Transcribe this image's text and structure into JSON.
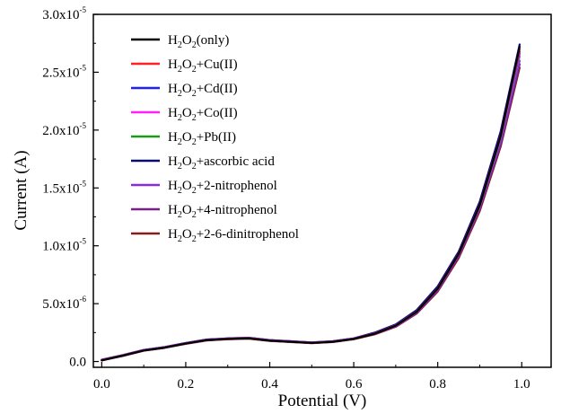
{
  "chart_data": {
    "type": "line",
    "xlabel": "Potential (V)",
    "ylabel": "Current (A)",
    "xlim": [
      -0.02,
      1.07
    ],
    "ylim": [
      -5e-07,
      3e-05
    ],
    "x_ticks": [
      0.0,
      0.2,
      0.4,
      0.6,
      0.8,
      1.0
    ],
    "x_tick_labels": [
      "0.0",
      "0.2",
      "0.4",
      "0.6",
      "0.8",
      "1.0"
    ],
    "y_ticks": [
      0,
      5e-06,
      1e-05,
      1.5e-05,
      2e-05,
      2.5e-05,
      3e-05
    ],
    "y_tick_labels": [
      {
        "mant": "0.0",
        "exp": ""
      },
      {
        "mant": "5.0x10",
        "exp": "-6"
      },
      {
        "mant": "1.0x10",
        "exp": "-5"
      },
      {
        "mant": "1.5x10",
        "exp": "-5"
      },
      {
        "mant": "2.0x10",
        "exp": "-5"
      },
      {
        "mant": "2.5x10",
        "exp": "-5"
      },
      {
        "mant": "3.0x10",
        "exp": "-5"
      }
    ],
    "legend_position": "top-left",
    "series_x": [
      0.0,
      0.05,
      0.1,
      0.15,
      0.2,
      0.25,
      0.3,
      0.35,
      0.4,
      0.45,
      0.5,
      0.55,
      0.6,
      0.65,
      0.7,
      0.75,
      0.8,
      0.85,
      0.9,
      0.95,
      1.0
    ],
    "series": [
      {
        "name_parts": [
          "H",
          "2",
          "O",
          "2",
          "(only)"
        ],
        "color": "#000000",
        "end_y": 2.72e-05,
        "y": [
          1e-07,
          5e-07,
          9.5e-07,
          1.2e-06,
          1.55e-06,
          1.85e-06,
          1.95e-06,
          2e-06,
          1.8e-06,
          1.7e-06,
          1.6e-06,
          1.7e-06,
          1.95e-06,
          2.4e-06,
          3.1e-06,
          4.3e-06,
          6.3e-06,
          9.3e-06,
          1.35e-05,
          1.95e-05,
          2.72e-05
        ]
      },
      {
        "name_parts": [
          "H",
          "2",
          "O",
          "2",
          "+Cu(II)"
        ],
        "color": "#ff2020",
        "end_y": 2.7e-05,
        "y": [
          1.2e-07,
          5.2e-07,
          9.7e-07,
          1.22e-06,
          1.57e-06,
          1.87e-06,
          1.97e-06,
          2.02e-06,
          1.82e-06,
          1.72e-06,
          1.62e-06,
          1.72e-06,
          1.97e-06,
          2.42e-06,
          3.12e-06,
          4.32e-06,
          6.32e-06,
          9.32e-06,
          1.352e-05,
          1.952e-05,
          2.7e-05
        ]
      },
      {
        "name_parts": [
          "H",
          "2",
          "O",
          "2",
          "+Cd(II)"
        ],
        "color": "#2020ff",
        "end_y": 2.68e-05,
        "y": [
          1.5e-07,
          5.5e-07,
          1e-06,
          1.25e-06,
          1.6e-06,
          1.9e-06,
          2e-06,
          2.05e-06,
          1.85e-06,
          1.75e-06,
          1.65e-06,
          1.75e-06,
          2e-06,
          2.45e-06,
          3.15e-06,
          4.35e-06,
          6.35e-06,
          9.35e-06,
          1.355e-05,
          1.955e-05,
          2.68e-05
        ]
      },
      {
        "name_parts": [
          "H",
          "2",
          "O",
          "2",
          "+Co(II)"
        ],
        "color": "#ff20ff",
        "end_y": 2.66e-05,
        "y": [
          1e-07,
          5e-07,
          9.5e-07,
          1.2e-06,
          1.55e-06,
          1.85e-06,
          1.95e-06,
          2e-06,
          1.8e-06,
          1.7e-06,
          1.6e-06,
          1.7e-06,
          1.95e-06,
          2.4e-06,
          3.1e-06,
          4.3e-06,
          6.3e-06,
          9.3e-06,
          1.35e-05,
          1.94e-05,
          2.66e-05
        ]
      },
      {
        "name_parts": [
          "H",
          "2",
          "O",
          "2",
          "+Pb(II)"
        ],
        "color": "#1a9a1a",
        "end_y": 2.64e-05,
        "y": [
          1e-07,
          5e-07,
          9.5e-07,
          1.2e-06,
          1.55e-06,
          1.85e-06,
          1.95e-06,
          2e-06,
          1.8e-06,
          1.7e-06,
          1.6e-06,
          1.7e-06,
          1.95e-06,
          2.4e-06,
          3.1e-06,
          4.3e-06,
          6.3e-06,
          9.3e-06,
          1.345e-05,
          1.93e-05,
          2.64e-05
        ]
      },
      {
        "name_parts": [
          "H",
          "2",
          "O",
          "2",
          "+ascorbic acid"
        ],
        "color": "#0a0a6e",
        "end_y": 2.74e-05,
        "y": [
          1.5e-07,
          5.5e-07,
          1e-06,
          1.25e-06,
          1.6e-06,
          1.9e-06,
          2e-06,
          2.05e-06,
          1.85e-06,
          1.75e-06,
          1.65e-06,
          1.75e-06,
          2e-06,
          2.5e-06,
          3.2e-06,
          4.45e-06,
          6.5e-06,
          9.5e-06,
          1.38e-05,
          1.99e-05,
          2.74e-05
        ]
      },
      {
        "name_parts": [
          "H",
          "2",
          "O",
          "2",
          "+2-nitrophenol"
        ],
        "color": "#8a2be2",
        "end_y": 2.6e-05,
        "y": [
          1e-07,
          5e-07,
          9.5e-07,
          1.2e-06,
          1.55e-06,
          1.85e-06,
          1.95e-06,
          2e-06,
          1.8e-06,
          1.7e-06,
          1.6e-06,
          1.7e-06,
          1.95e-06,
          2.4e-06,
          3.05e-06,
          4.25e-06,
          6.2e-06,
          9.2e-06,
          1.33e-05,
          1.9e-05,
          2.6e-05
        ]
      },
      {
        "name_parts": [
          "H",
          "2",
          "O",
          "2",
          "+4-nitrophenol"
        ],
        "color": "#7a1f8a",
        "end_y": 2.57e-05,
        "y": [
          1e-07,
          5e-07,
          9.5e-07,
          1.2e-06,
          1.55e-06,
          1.85e-06,
          1.95e-06,
          2e-06,
          1.8e-06,
          1.7e-06,
          1.6e-06,
          1.7e-06,
          1.95e-06,
          2.38e-06,
          3.05e-06,
          4.2e-06,
          6.15e-06,
          9.1e-06,
          1.32e-05,
          1.88e-05,
          2.57e-05
        ]
      },
      {
        "name_parts": [
          "H",
          "2",
          "O",
          "2",
          "+2-6-dinitrophenol"
        ],
        "color": "#8b1a1a",
        "end_y": 2.54e-05,
        "y": [
          1e-07,
          4.8e-07,
          9.3e-07,
          1.18e-06,
          1.52e-06,
          1.82e-06,
          1.92e-06,
          1.97e-06,
          1.78e-06,
          1.68e-06,
          1.58e-06,
          1.68e-06,
          1.92e-06,
          2.35e-06,
          3e-06,
          4.15e-06,
          6.05e-06,
          8.95e-06,
          1.3e-05,
          1.86e-05,
          2.54e-05
        ]
      }
    ]
  }
}
